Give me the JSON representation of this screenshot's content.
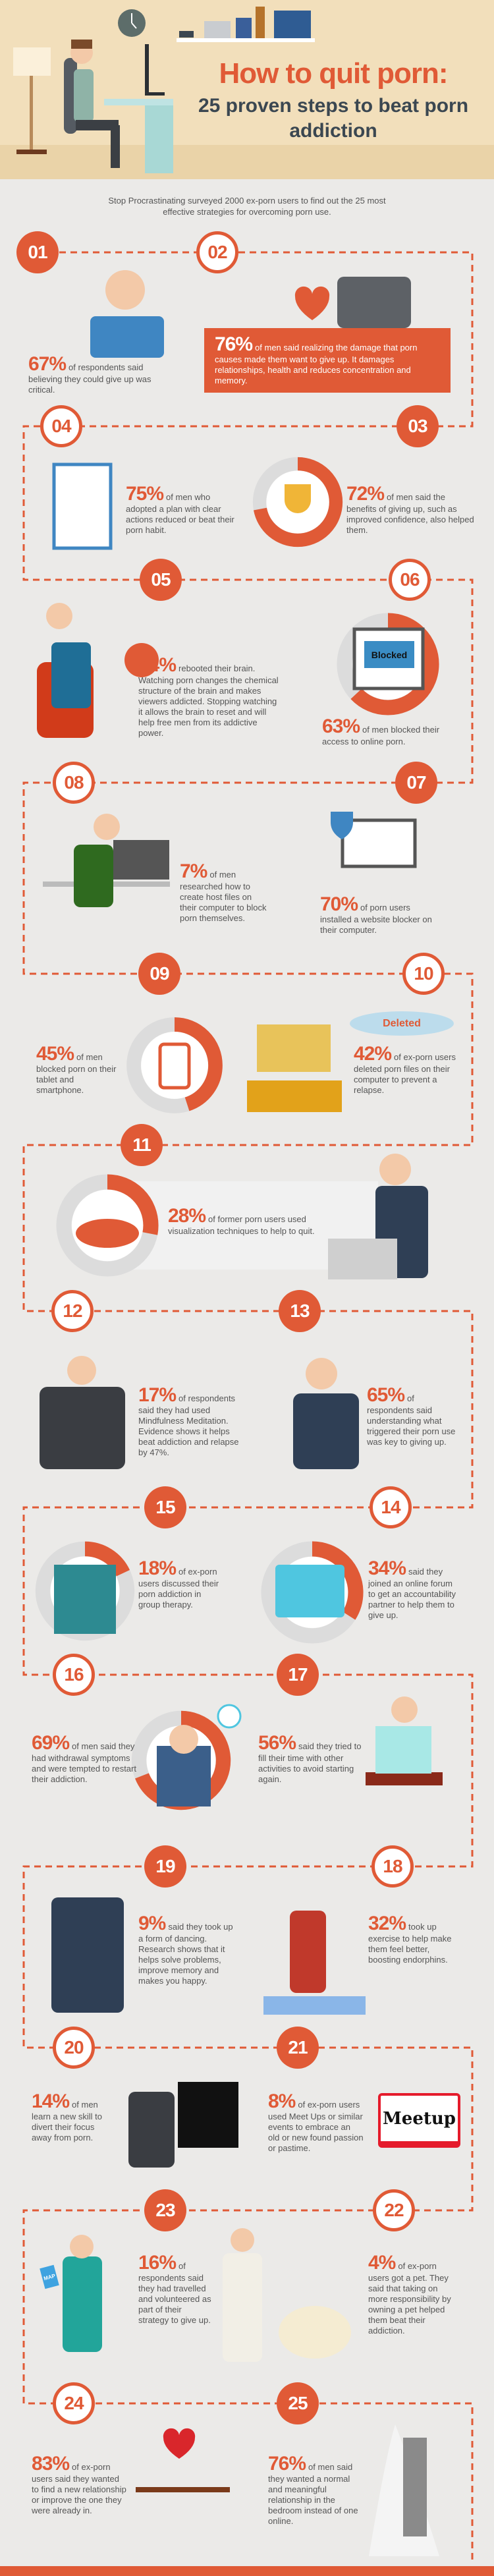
{
  "header": {
    "title": "How to quit porn:",
    "subtitle": "25 proven steps to beat porn addiction"
  },
  "intro": "Stop Procrastinating surveyed 2000 ex-porn users to find out the 25 most effective strategies for overcoming porn use.",
  "colors": {
    "accent": "#e05a36",
    "heading": "#3b4751",
    "background": "#ebeae8",
    "header_bg": "#f2dfbb"
  },
  "labels": {
    "deleted": "Deleted",
    "blocked": "Blocked",
    "meetup_logo": "Meetup",
    "map": "MAP"
  },
  "steps": [
    {
      "number": "01",
      "pct": "67%",
      "text": "of respondents said believing they could give up was critical."
    },
    {
      "number": "02",
      "pct": "76%",
      "text": "of men said realizing the damage that porn causes made them want to give up. It damages relationships, health and reduces concentration and memory."
    },
    {
      "number": "03",
      "pct": "72%",
      "text": "of men said the benefits of giving up, such as improved confidence, also helped them."
    },
    {
      "number": "04",
      "pct": "75%",
      "text": "of men who adopted a plan with clear actions reduced or beat their porn habit."
    },
    {
      "number": "05",
      "pct": "44%",
      "text": "rebooted their brain. Watching porn changes the chemical structure of the brain and makes viewers addicted. Stopping watching it allows the brain to reset and will help free men from its addictive power."
    },
    {
      "number": "06",
      "pct": "63%",
      "text": "of men blocked their access to online porn."
    },
    {
      "number": "07",
      "pct": "70%",
      "text": "of porn users installed a website blocker on their computer."
    },
    {
      "number": "08",
      "pct": "7%",
      "text": "of men researched how to create host files on their computer to block porn themselves."
    },
    {
      "number": "09",
      "pct": "45%",
      "text": "of men blocked porn on their tablet and smartphone."
    },
    {
      "number": "10",
      "pct": "42%",
      "text": "of ex-porn users deleted porn files on their computer to prevent a relapse."
    },
    {
      "number": "11",
      "pct": "28%",
      "text": "of former porn users used visualization techniques to help to quit."
    },
    {
      "number": "12",
      "pct": "17%",
      "text": "of respondents said they had used Mindfulness Meditation. Evidence shows it helps beat addiction and relapse by 47%."
    },
    {
      "number": "13",
      "pct": "65%",
      "text": "of respondents said understanding what triggered their porn use was key to giving up."
    },
    {
      "number": "14",
      "pct": "34%",
      "text": "said they joined an online forum to get an accountability partner to help them to give up."
    },
    {
      "number": "15",
      "pct": "18%",
      "text": "of ex-porn users discussed their porn addiction in group therapy."
    },
    {
      "number": "16",
      "pct": "69%",
      "text": "of men said they had withdrawal symptoms and were tempted to restart their addiction."
    },
    {
      "number": "17",
      "pct": "56%",
      "text": "said they tried to fill their time with other activities to avoid starting again."
    },
    {
      "number": "18",
      "pct": "32%",
      "text": "took up exercise to help make them feel better, boosting endorphins."
    },
    {
      "number": "19",
      "pct": "9%",
      "text": "said they took up a form of dancing. Research shows that it helps solve problems, improve memory and makes you happy."
    },
    {
      "number": "20",
      "pct": "14%",
      "text": "of men learn a new skill to divert their focus away from porn."
    },
    {
      "number": "21",
      "pct": "8%",
      "text": "of ex-porn users used Meet Ups or similar events to embrace an old or new found passion or pastime."
    },
    {
      "number": "22",
      "pct": "4%",
      "text": "of ex-porn users got a pet. They said that taking on more responsibility by owning a pet helped them beat their addiction."
    },
    {
      "number": "23",
      "pct": "16%",
      "text": "of respondents said they had travelled and volunteered as part of their strategy to give up."
    },
    {
      "number": "24",
      "pct": "83%",
      "text": "of ex-porn users said they wanted to find a new relationship or improve the one they were already in."
    },
    {
      "number": "25",
      "pct": "76%",
      "text": "of men said they wanted a normal and meaningful relationship in the bedroom instead of one online."
    }
  ]
}
